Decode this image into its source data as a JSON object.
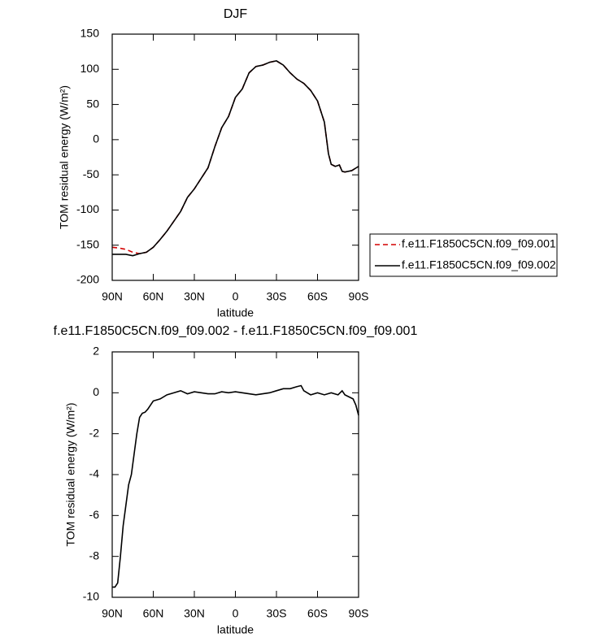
{
  "chart_data": [
    {
      "type": "line",
      "title": "DJF",
      "xlabel": "latitude",
      "ylabel": "TOM residual energy (W/m²)",
      "x": [
        90,
        85,
        80,
        75,
        70,
        65,
        60,
        55,
        50,
        45,
        40,
        35,
        30,
        25,
        20,
        15,
        10,
        5,
        0,
        -5,
        -10,
        -15,
        -20,
        -25,
        -30,
        -35,
        -40,
        -45,
        -50,
        -55,
        -60,
        -65,
        -68,
        -70,
        -73,
        -76,
        -78,
        -80,
        -85,
        -90
      ],
      "series": [
        {
          "name": "f.e11.F1850C5CN.f09_f09.001",
          "color": "#d40000",
          "linestyle": "dashed",
          "values": [
            -153,
            -154,
            -156,
            -160,
            -162,
            -160,
            -153,
            -142,
            -130,
            -116,
            -102,
            -82,
            -70,
            -55,
            -40,
            -10,
            17,
            33,
            60,
            72,
            95,
            104,
            106,
            110,
            112,
            106,
            95,
            86,
            80,
            70,
            55,
            25,
            -20,
            -35,
            -38,
            -36,
            -45,
            -46,
            -44,
            -38
          ]
        },
        {
          "name": "f.e11.F1850C5CN.f09_f09.002",
          "color": "#000000",
          "linestyle": "solid",
          "values": [
            -163,
            -163,
            -163,
            -165,
            -162,
            -160,
            -153,
            -142,
            -130,
            -116,
            -102,
            -82,
            -70,
            -55,
            -40,
            -10,
            17,
            33,
            60,
            72,
            95,
            104,
            106,
            110,
            112,
            106,
            95,
            86,
            80,
            70,
            55,
            25,
            -20,
            -35,
            -38,
            -36,
            -45,
            -46,
            -44,
            -38
          ]
        }
      ],
      "xlim": [
        90,
        -90
      ],
      "xticks": [
        {
          "value": 90,
          "label": "90N"
        },
        {
          "value": 60,
          "label": "60N"
        },
        {
          "value": 30,
          "label": "30N"
        },
        0,
        {
          "value": -30,
          "label": "30S"
        },
        {
          "value": -60,
          "label": "60S"
        },
        {
          "value": -90,
          "label": "90S"
        }
      ],
      "ylim": [
        -200,
        150
      ],
      "yticks": [
        -200,
        -150,
        -100,
        -50,
        0,
        50,
        100,
        150
      ],
      "legend": "right"
    },
    {
      "type": "line",
      "title": "f.e11.F1850C5CN.f09_f09.002 - f.e11.F1850C5CN.f09_f09.001",
      "xlabel": "latitude",
      "ylabel": "TOM residual energy (W/m²)",
      "x": [
        90,
        88,
        86,
        84,
        82,
        80,
        78,
        76,
        74,
        72,
        70,
        68,
        66,
        64,
        62,
        60,
        55,
        50,
        45,
        40,
        35,
        30,
        25,
        20,
        15,
        10,
        5,
        0,
        -5,
        -10,
        -15,
        -20,
        -25,
        -30,
        -35,
        -40,
        -45,
        -48,
        -50,
        -55,
        -60,
        -65,
        -70,
        -75,
        -78,
        -80,
        -83,
        -86,
        -88,
        -90
      ],
      "values": [
        -9.5,
        -9.5,
        -9.3,
        -8,
        -6.5,
        -5.5,
        -4.5,
        -4,
        -3,
        -2,
        -1.2,
        -1,
        -0.95,
        -0.8,
        -0.6,
        -0.4,
        -0.3,
        -0.1,
        0,
        0.1,
        -0.05,
        0.05,
        0,
        -0.05,
        -0.05,
        0.05,
        0,
        0.05,
        0,
        -0.05,
        -0.1,
        -0.05,
        0,
        0.1,
        0.2,
        0.2,
        0.3,
        0.35,
        0.1,
        -0.1,
        0,
        -0.1,
        0,
        -0.1,
        0.1,
        -0.1,
        -0.2,
        -0.3,
        -0.6,
        -1.1
      ],
      "color": "#000000",
      "xlim": [
        90,
        -90
      ],
      "xticks": [
        {
          "value": 90,
          "label": "90N"
        },
        {
          "value": 60,
          "label": "60N"
        },
        {
          "value": 30,
          "label": "30N"
        },
        0,
        {
          "value": -30,
          "label": "30S"
        },
        {
          "value": -60,
          "label": "60S"
        },
        {
          "value": -90,
          "label": "90S"
        }
      ],
      "ylim": [
        -10,
        2
      ],
      "yticks": [
        -10,
        -8,
        -6,
        -4,
        -2,
        0,
        2
      ]
    }
  ]
}
